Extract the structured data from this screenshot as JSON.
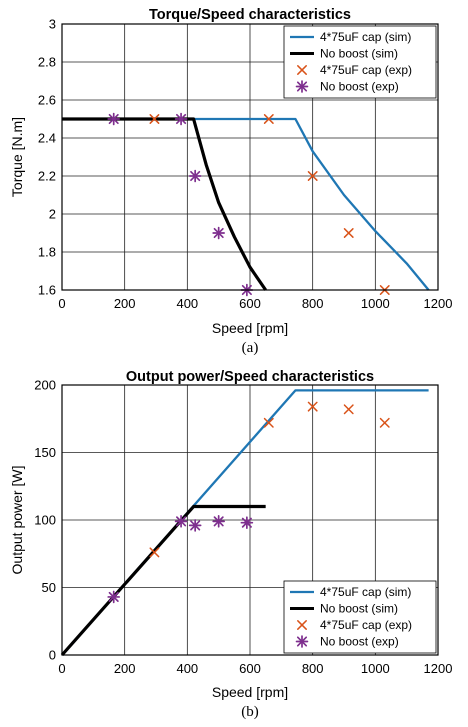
{
  "colors": {
    "cap": "#1f77b4",
    "noboost": "#000000",
    "cap_exp": "#d95319",
    "noboost_exp": "#7e2f8e"
  },
  "chart_data": [
    {
      "type": "line",
      "caption": "(a)",
      "title": "Torque/Speed characteristics",
      "xlabel": "Speed [rpm]",
      "ylabel": "Torque [N.m]",
      "xlim": [
        0,
        1200
      ],
      "ylim": [
        1.6,
        3
      ],
      "xticks": [
        0,
        200,
        400,
        600,
        800,
        1000,
        1200
      ],
      "yticks": [
        1.6,
        1.8,
        2,
        2.2,
        2.4,
        2.6,
        2.8,
        3
      ],
      "ytick_labels": [
        "1.6",
        "1.8",
        "2",
        "2.2",
        "2.4",
        "2.6",
        "2.8",
        "3"
      ],
      "grid": true,
      "legend_position": "top-right",
      "series": [
        {
          "name": "4*75uF cap (sim)",
          "style": "line",
          "color": "#1f77b4",
          "x": [
            0,
            745,
            800,
            900,
            1000,
            1100,
            1170
          ],
          "y": [
            2.5,
            2.5,
            2.33,
            2.1,
            1.91,
            1.74,
            1.6
          ]
        },
        {
          "name": "No boost (sim)",
          "style": "line",
          "color": "#000000",
          "x": [
            0,
            420,
            460,
            500,
            550,
            600,
            650
          ],
          "y": [
            2.5,
            2.5,
            2.26,
            2.06,
            1.88,
            1.72,
            1.6
          ]
        },
        {
          "name": "4*75uF cap (exp)",
          "style": "x",
          "color": "#d95319",
          "x": [
            295,
            660,
            800,
            915,
            1030
          ],
          "y": [
            2.5,
            2.5,
            2.2,
            1.9,
            1.6
          ]
        },
        {
          "name": "No boost (exp)",
          "style": "star",
          "color": "#7e2f8e",
          "x": [
            165,
            380,
            425,
            500,
            590
          ],
          "y": [
            2.5,
            2.5,
            2.2,
            1.9,
            1.6
          ]
        }
      ]
    },
    {
      "type": "line",
      "caption": "(b)",
      "title": "Output power/Speed characteristics",
      "xlabel": "Speed [rpm]",
      "ylabel": "Output power [W]",
      "xlim": [
        0,
        1200
      ],
      "ylim": [
        0,
        200
      ],
      "xticks": [
        0,
        200,
        400,
        600,
        800,
        1000,
        1200
      ],
      "yticks": [
        0,
        50,
        100,
        150,
        200
      ],
      "ytick_labels": [
        "0",
        "50",
        "100",
        "150",
        "200"
      ],
      "grid": true,
      "legend_position": "bottom-right",
      "series": [
        {
          "name": "4*75uF cap (sim)",
          "style": "line",
          "color": "#1f77b4",
          "x": [
            0,
            745,
            1170
          ],
          "y": [
            0,
            196,
            196
          ]
        },
        {
          "name": "No boost (sim)",
          "style": "line",
          "color": "#000000",
          "x": [
            0,
            420,
            650
          ],
          "y": [
            0,
            110,
            110
          ]
        },
        {
          "name": "4*75uF cap (exp)",
          "style": "x",
          "color": "#d95319",
          "x": [
            295,
            660,
            800,
            915,
            1030
          ],
          "y": [
            76,
            172,
            184,
            182,
            172
          ]
        },
        {
          "name": "No boost (exp)",
          "style": "star",
          "color": "#7e2f8e",
          "x": [
            165,
            380,
            425,
            500,
            590
          ],
          "y": [
            43,
            99,
            96,
            99,
            98
          ]
        }
      ]
    }
  ]
}
